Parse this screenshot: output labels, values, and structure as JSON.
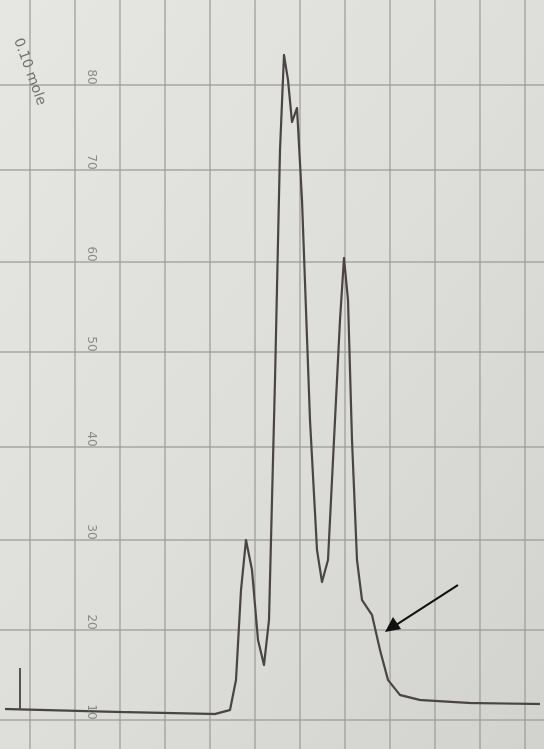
{
  "note": "0.10 mole",
  "scale_labels": [
    "80",
    "70",
    "60",
    "50",
    "40",
    "30",
    "20",
    "10"
  ]
}
